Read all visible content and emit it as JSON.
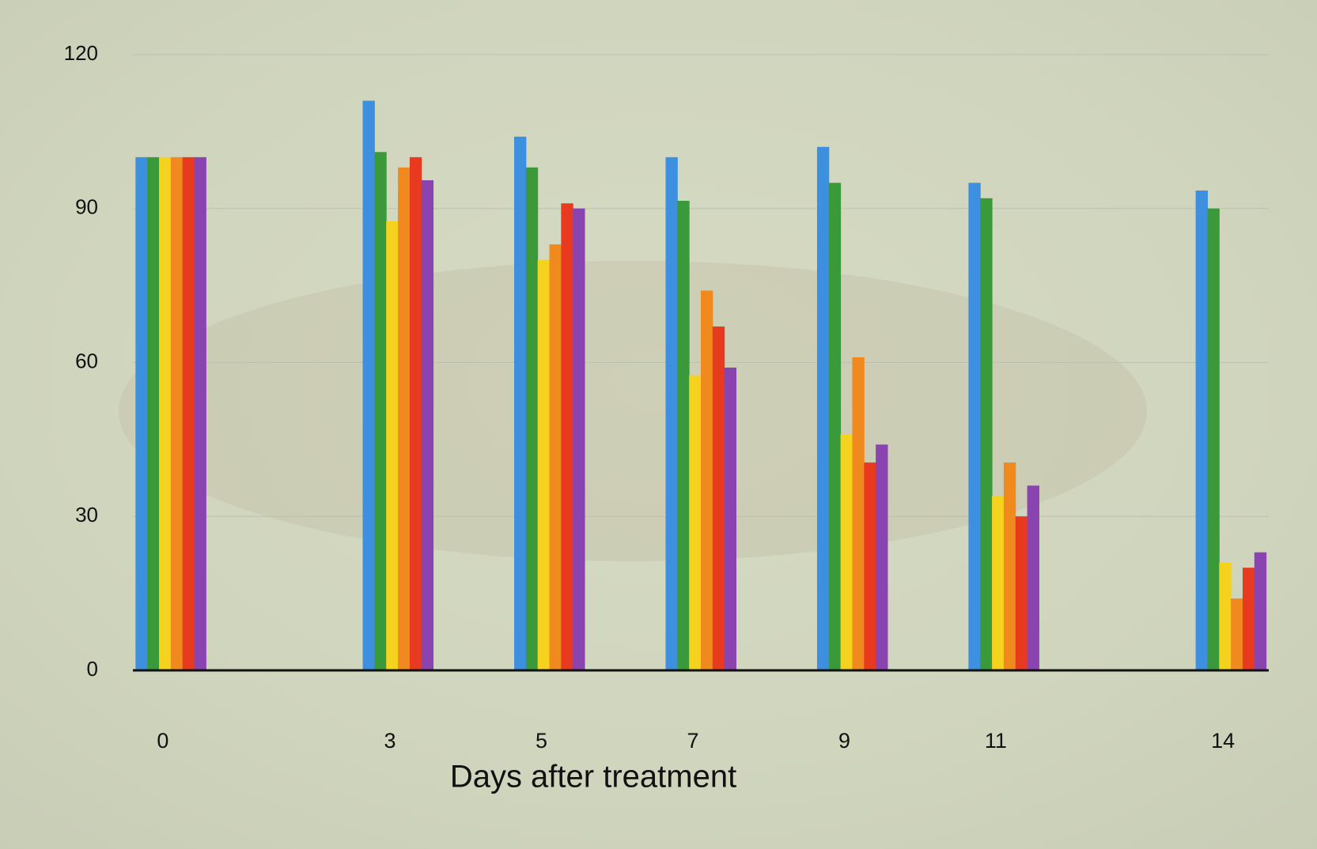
{
  "chart_data": {
    "type": "bar",
    "x_label": "Days after treatment",
    "x": [
      0,
      3,
      5,
      7,
      9,
      11,
      14
    ],
    "xlim": [
      -0.5,
      14.5
    ],
    "ylim": [
      0,
      120
    ],
    "yticks": [
      0,
      30,
      60,
      90,
      120
    ],
    "grid": true,
    "series": [
      {
        "color": "#3d8fe0",
        "values": [
          100,
          111,
          104,
          100,
          102,
          95,
          93.5
        ]
      },
      {
        "color": "#3a9a3a",
        "values": [
          100,
          101,
          98,
          91.5,
          95,
          92,
          90
        ]
      },
      {
        "color": "#f5d21e",
        "values": [
          100,
          87.5,
          80,
          57.5,
          46,
          34,
          21
        ]
      },
      {
        "color": "#f08a1e",
        "values": [
          100,
          98,
          83,
          74,
          61,
          40.5,
          14
        ]
      },
      {
        "color": "#e83a1e",
        "values": [
          100,
          100,
          91,
          67,
          40.5,
          30,
          20
        ]
      },
      {
        "color": "#8a44b0",
        "values": [
          100,
          95.5,
          90,
          59,
          44,
          36,
          23
        ]
      }
    ]
  }
}
